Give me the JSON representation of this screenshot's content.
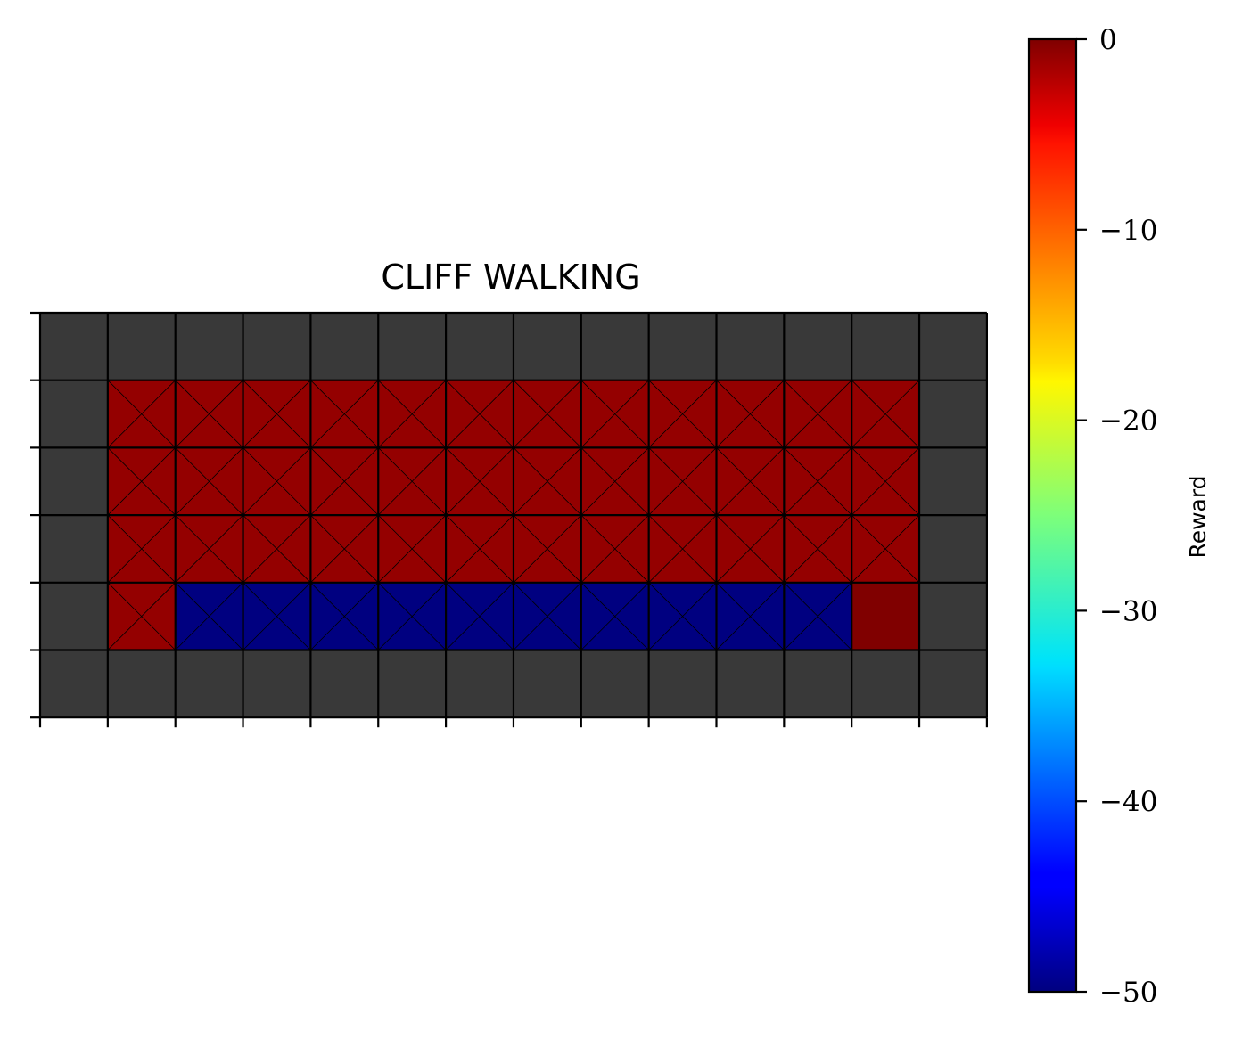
{
  "chart_data": {
    "type": "heatmap",
    "title": "CLIFF WALKING",
    "grid": {
      "rows": 6,
      "cols": 14,
      "wall_color": "#393939",
      "note_cells": "values in reward units; null = wall",
      "cells": [
        [
          null,
          null,
          null,
          null,
          null,
          null,
          null,
          null,
          null,
          null,
          null,
          null,
          null,
          null
        ],
        [
          null,
          -1,
          -1,
          -1,
          -1,
          -1,
          -1,
          -1,
          -1,
          -1,
          -1,
          -1,
          -1,
          null
        ],
        [
          null,
          -1,
          -1,
          -1,
          -1,
          -1,
          -1,
          -1,
          -1,
          -1,
          -1,
          -1,
          -1,
          null
        ],
        [
          null,
          -1,
          -1,
          -1,
          -1,
          -1,
          -1,
          -1,
          -1,
          -1,
          -1,
          -1,
          -1,
          null
        ],
        [
          null,
          -1,
          -50,
          -50,
          -50,
          -50,
          -50,
          -50,
          -50,
          -50,
          -50,
          -50,
          0,
          null
        ],
        [
          null,
          null,
          null,
          null,
          null,
          null,
          null,
          null,
          null,
          null,
          null,
          null,
          null,
          null
        ]
      ],
      "crossed": [
        [
          false,
          false,
          false,
          false,
          false,
          false,
          false,
          false,
          false,
          false,
          false,
          false,
          false,
          false
        ],
        [
          false,
          true,
          true,
          true,
          true,
          true,
          true,
          true,
          true,
          true,
          true,
          true,
          true,
          false
        ],
        [
          false,
          true,
          true,
          true,
          true,
          true,
          true,
          true,
          true,
          true,
          true,
          true,
          true,
          false
        ],
        [
          false,
          true,
          true,
          true,
          true,
          true,
          true,
          true,
          true,
          true,
          true,
          true,
          true,
          false
        ],
        [
          false,
          true,
          true,
          true,
          true,
          true,
          true,
          true,
          true,
          true,
          true,
          true,
          false,
          false
        ],
        [
          false,
          false,
          false,
          false,
          false,
          false,
          false,
          false,
          false,
          false,
          false,
          false,
          false,
          false
        ]
      ]
    },
    "colorbar": {
      "label": "Reward",
      "colormap": "jet",
      "range": [
        -50,
        0
      ],
      "ticks": [
        0,
        -10,
        -20,
        -30,
        -40,
        -50
      ],
      "tick_labels": [
        "0",
        "−10",
        "−20",
        "−30",
        "−40",
        "−50"
      ]
    }
  }
}
